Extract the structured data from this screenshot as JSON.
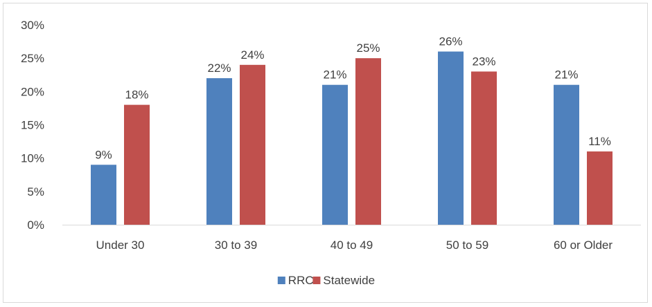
{
  "chart_data": {
    "type": "bar",
    "categories": [
      "Under 30",
      "30 to 39",
      "40 to 49",
      "50 to 59",
      "60 or Older"
    ],
    "series": [
      {
        "name": "RRC",
        "values": [
          9,
          22,
          21,
          26,
          21
        ],
        "labels": [
          "9%",
          "22%",
          "21%",
          "26%",
          "21%"
        ],
        "color": "#4f81bd"
      },
      {
        "name": "Statewide",
        "values": [
          18,
          24,
          25,
          23,
          11
        ],
        "labels": [
          "18%",
          "24%",
          "25%",
          "23%",
          "11%"
        ],
        "color": "#c0504d"
      }
    ],
    "ylim": [
      0,
      30
    ],
    "yticks": [
      0,
      5,
      10,
      15,
      20,
      25,
      30
    ],
    "ytick_labels": [
      "0%",
      "5%",
      "10%",
      "15%",
      "20%",
      "25%",
      "30%"
    ],
    "grid": false,
    "legend": "bottom-center"
  }
}
